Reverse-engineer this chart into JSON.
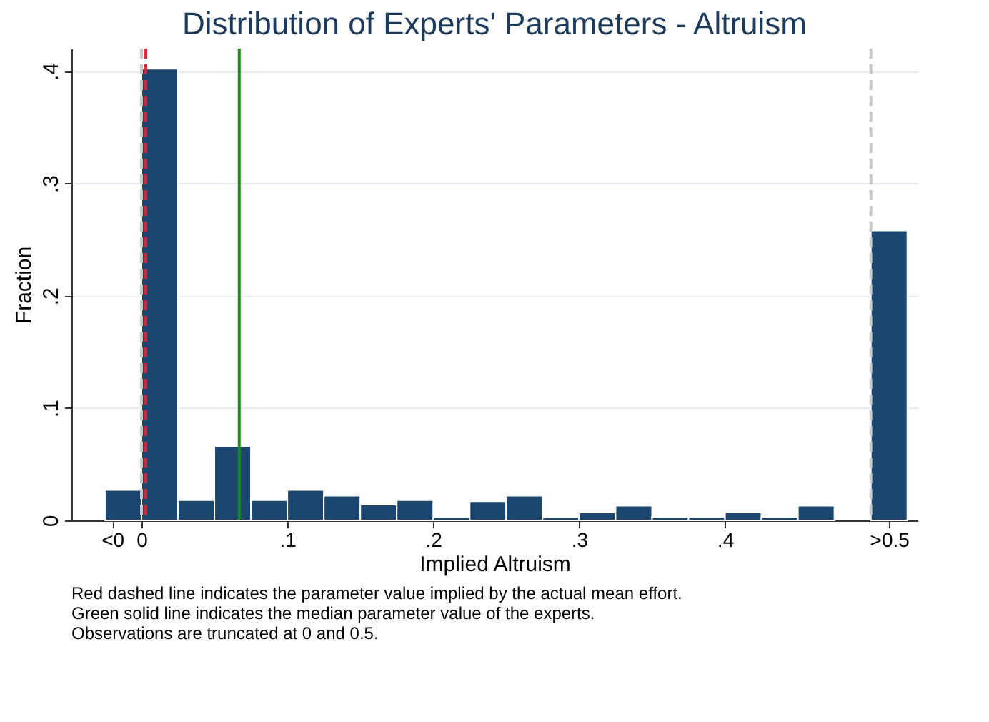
{
  "chart_data": {
    "type": "histogram",
    "title": "Distribution of Experts' Parameters - Altruism",
    "xlabel": "Implied Altruism",
    "ylabel": "Fraction",
    "bins": [
      -0.025,
      0,
      0.025,
      0.05,
      0.075,
      0.1,
      0.125,
      0.15,
      0.175,
      0.2,
      0.225,
      0.25,
      0.275,
      0.3,
      0.325,
      0.35,
      0.375,
      0.4,
      0.425,
      0.45,
      0.475,
      0.5,
      0.525
    ],
    "values": [
      0.027,
      0.402,
      0.018,
      0.066,
      0.018,
      0.027,
      0.022,
      0.014,
      0.018,
      0.003,
      0.017,
      0.022,
      0.003,
      0.007,
      0.013,
      0.003,
      0.003,
      0.007,
      0.003,
      0.013,
      null,
      0.258
    ],
    "color": "#1b4670",
    "xlim": [
      -0.048,
      0.532
    ],
    "ylim": [
      0,
      0.42
    ],
    "xticks": [
      {
        "value": -0.02,
        "label": "<0"
      },
      {
        "value": 0,
        "label": "0"
      },
      {
        "value": 0.1,
        "label": ".1"
      },
      {
        "value": 0.2,
        "label": ".2"
      },
      {
        "value": 0.3,
        "label": ".3"
      },
      {
        "value": 0.4,
        "label": ".4"
      },
      {
        "value": 0.5125,
        "label": ">0.5"
      }
    ],
    "yticks": [
      0,
      {
        "value": 0.1,
        "label": ".1"
      },
      {
        "value": 0.2,
        "label": ".2"
      },
      {
        "value": 0.3,
        "label": ".3"
      },
      {
        "value": 0.4,
        "label": ".4"
      }
    ],
    "grid": "y",
    "ref_lines": [
      {
        "axis": "x",
        "value": 0,
        "color": "#c8c8c8",
        "line_style": "dashed"
      },
      {
        "axis": "x",
        "value": 0.5,
        "color": "#c8c8c8",
        "line_style": "dashed"
      },
      {
        "axis": "x",
        "value": 0.003,
        "color": "#e8202a",
        "line_style": "dashed"
      },
      {
        "axis": "x",
        "value": 0.067,
        "color": "#1a8a1a",
        "line_style": "solid"
      }
    ],
    "annotations": [
      "Red dashed line indicates the parameter value implied by the actual mean effort.",
      "Green solid line indicates the median parameter value of the experts.",
      "Observations are truncated at 0 and 0.5."
    ]
  }
}
